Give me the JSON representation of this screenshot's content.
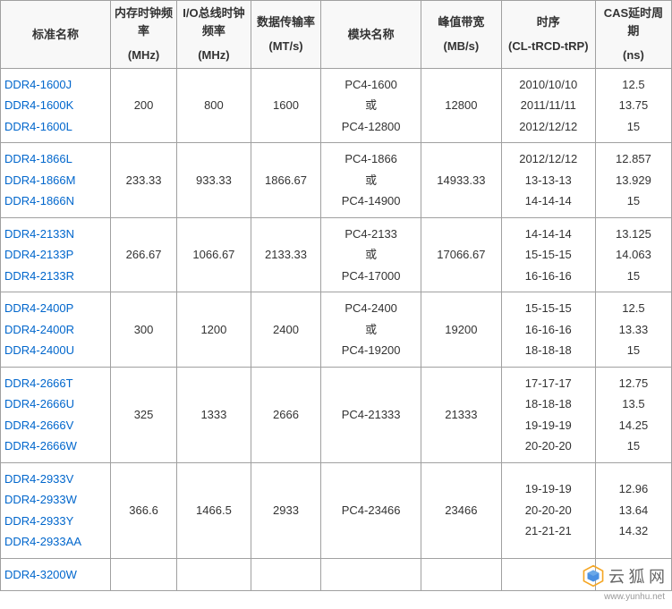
{
  "colors": {
    "border": "#a0a0a0",
    "link": "#0066cc",
    "header_bg": "#f8f8f8",
    "text": "#333333",
    "watermark_text": "#666666"
  },
  "table": {
    "headers": [
      {
        "line1": "标准名称",
        "line2": ""
      },
      {
        "line1": "内存时钟频率",
        "line2": "(MHz)"
      },
      {
        "line1": "I/O总线时钟频率",
        "line2": "(MHz)"
      },
      {
        "line1": "数据传输率",
        "line2": "(MT/s)"
      },
      {
        "line1": "模块名称",
        "line2": ""
      },
      {
        "line1": "峰值带宽",
        "line2": "(MB/s)"
      },
      {
        "line1": "时序",
        "line2": "(CL-tRCD-tRP)"
      },
      {
        "line1": "CAS延时周期",
        "line2": "(ns)"
      }
    ],
    "groups": [
      {
        "names": [
          "DDR4-1600J",
          "DDR4-1600K",
          "DDR4-1600L"
        ],
        "mem_clock": "200",
        "io_clock": "800",
        "data_rate": "1600",
        "module": [
          "PC4-1600",
          "或",
          "PC4-12800"
        ],
        "bandwidth": "12800",
        "timings": [
          "2010/10/10",
          "2011/11/11",
          "2012/12/12"
        ],
        "cas": [
          "12.5",
          "13.75",
          "15"
        ]
      },
      {
        "names": [
          "DDR4-1866L",
          "DDR4-1866M",
          "DDR4-1866N"
        ],
        "mem_clock": "233.33",
        "io_clock": "933.33",
        "data_rate": "1866.67",
        "module": [
          "PC4-1866",
          "或",
          "PC4-14900"
        ],
        "bandwidth": "14933.33",
        "timings": [
          "2012/12/12",
          "13-13-13",
          "14-14-14"
        ],
        "cas": [
          "12.857",
          "13.929",
          "15"
        ]
      },
      {
        "names": [
          "DDR4-2133N",
          "DDR4-2133P",
          "DDR4-2133R"
        ],
        "mem_clock": "266.67",
        "io_clock": "1066.67",
        "data_rate": "2133.33",
        "module": [
          "PC4-2133",
          "或",
          "PC4-17000"
        ],
        "bandwidth": "17066.67",
        "timings": [
          "14-14-14",
          "15-15-15",
          "16-16-16"
        ],
        "cas": [
          "13.125",
          "14.063",
          "15"
        ]
      },
      {
        "names": [
          "DDR4-2400P",
          "DDR4-2400R",
          "DDR4-2400U"
        ],
        "mem_clock": "300",
        "io_clock": "1200",
        "data_rate": "2400",
        "module": [
          "PC4-2400",
          "或",
          "PC4-19200"
        ],
        "bandwidth": "19200",
        "timings": [
          "15-15-15",
          "16-16-16",
          "18-18-18"
        ],
        "cas": [
          "12.5",
          "13.33",
          "15"
        ]
      },
      {
        "names": [
          "DDR4-2666T",
          "DDR4-2666U",
          "DDR4-2666V",
          "DDR4-2666W"
        ],
        "mem_clock": "325",
        "io_clock": "1333",
        "data_rate": "2666",
        "module": [
          "PC4-21333"
        ],
        "bandwidth": "21333",
        "timings": [
          "17-17-17",
          "18-18-18",
          "19-19-19",
          "20-20-20"
        ],
        "cas": [
          "12.75",
          "13.5",
          "14.25",
          "15"
        ]
      },
      {
        "names": [
          "DDR4-2933V",
          "DDR4-2933W",
          "DDR4-2933Y",
          "DDR4-2933AA"
        ],
        "mem_clock": "366.6",
        "io_clock": "1466.5",
        "data_rate": "2933",
        "module": [
          "PC4-23466"
        ],
        "bandwidth": "23466",
        "timings": [
          "19-19-19",
          "20-20-20",
          "21-21-21",
          ""
        ],
        "cas": [
          "12.96",
          "13.64",
          "14.32",
          ""
        ]
      },
      {
        "names": [
          "DDR4-3200W"
        ],
        "mem_clock": "",
        "io_clock": "",
        "data_rate": "",
        "module": [
          ""
        ],
        "bandwidth": "",
        "timings": [
          ""
        ],
        "cas": [
          ""
        ]
      }
    ]
  },
  "watermark": {
    "text": "云 狐 网",
    "url": "www.yunhu.net",
    "logo_colors": {
      "outer": "#f5a623",
      "inner": "#4a90e2"
    }
  }
}
